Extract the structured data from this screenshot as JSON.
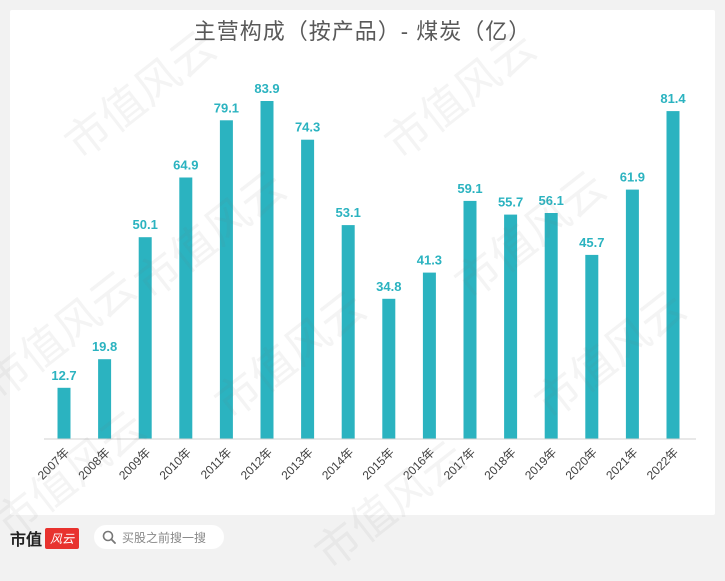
{
  "chart_data": {
    "type": "bar",
    "title": "主营构成（按产品）- 煤炭（亿）",
    "categories": [
      "2007年",
      "2008年",
      "2009年",
      "2010年",
      "2011年",
      "2012年",
      "2013年",
      "2014年",
      "2015年",
      "2016年",
      "2017年",
      "2018年",
      "2019年",
      "2020年",
      "2021年",
      "2022年"
    ],
    "values": [
      12.7,
      19.8,
      50.1,
      64.9,
      79.1,
      83.9,
      74.3,
      53.1,
      34.8,
      41.3,
      59.1,
      55.7,
      56.1,
      45.7,
      61.9,
      81.4
    ],
    "value_labels": [
      "12.7",
      "19.8",
      "50.1",
      "64.9",
      "79.1",
      "83.9",
      "74.3",
      "53.1",
      "34.8",
      "41.3",
      "59.1",
      "55.7",
      "56.1",
      "45.7",
      "61.9",
      "81.4"
    ],
    "xlabel": "",
    "ylabel": "",
    "ylim": [
      0,
      90
    ],
    "grid": false,
    "legend": "none",
    "bar_color": "#2bb3c0"
  },
  "watermark": "市值风云",
  "footer": {
    "brand_text": "市值",
    "brand_mark": "风云",
    "search_placeholder": "买股之前搜一搜"
  }
}
